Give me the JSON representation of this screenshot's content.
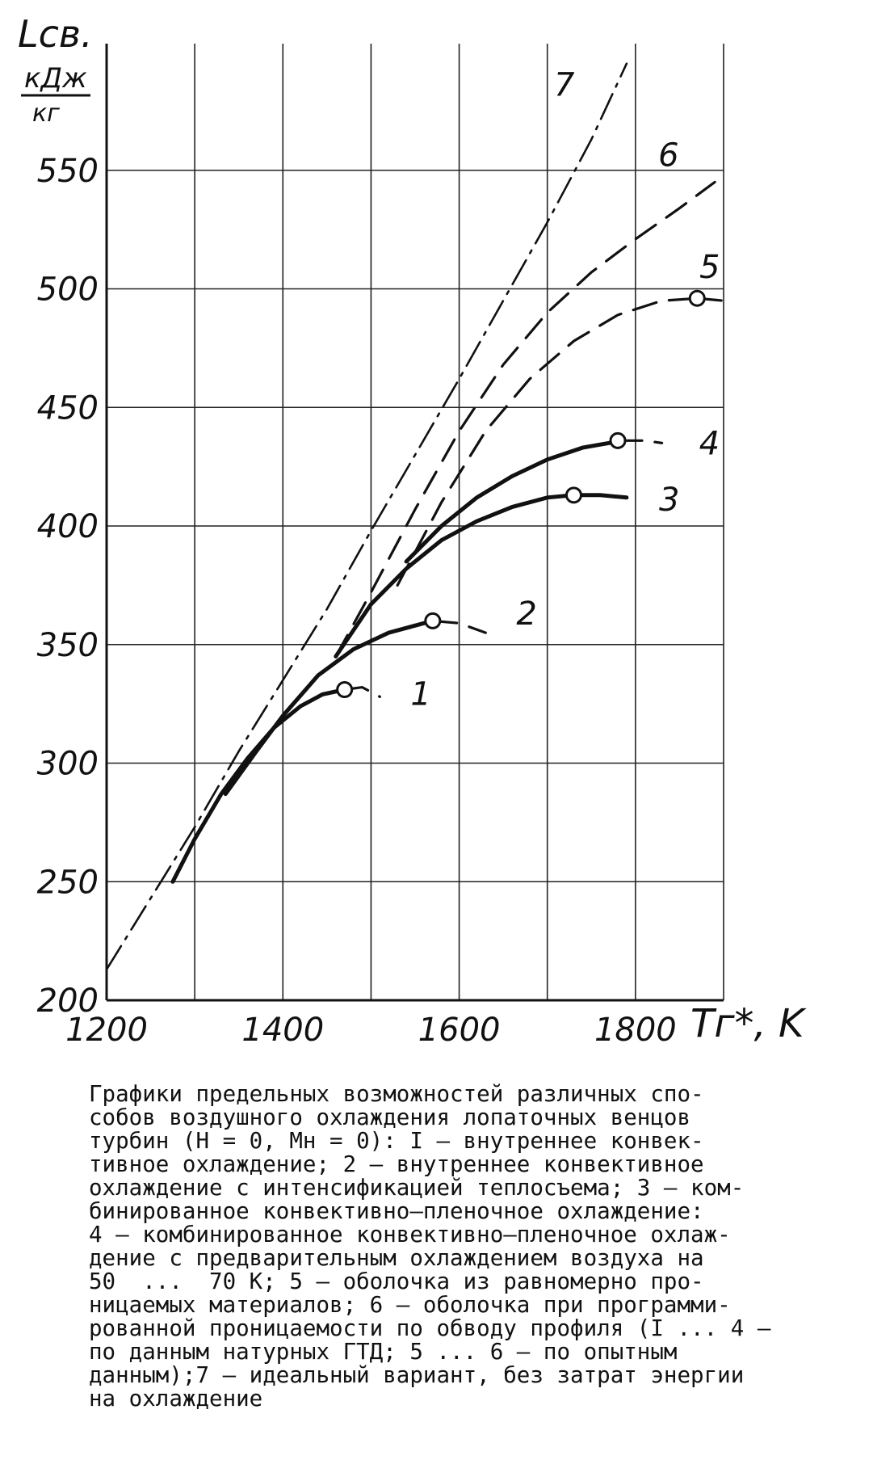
{
  "chart_data": {
    "type": "line",
    "ylabel_symbol": "Lсв.",
    "ylabel_unit_num": "кДж",
    "ylabel_unit_den": "кг",
    "xlabel": "Tг*, K",
    "xlim": [
      1200,
      1900
    ],
    "ylim": [
      200,
      600
    ],
    "xticks": [
      1200,
      1400,
      1600,
      1800
    ],
    "yticks": [
      200,
      250,
      300,
      350,
      400,
      450,
      500,
      550
    ],
    "grid": true,
    "series": [
      {
        "name": "1",
        "style": "solid-bold",
        "x": [
          1275,
          1300,
          1330,
          1360,
          1390,
          1420,
          1445,
          1470
        ],
        "y": [
          250,
          268,
          287,
          302,
          315,
          324,
          329,
          331
        ]
      },
      {
        "name": "1",
        "style": "dash",
        "x": [
          1470,
          1490,
          1510
        ],
        "y": [
          331,
          332,
          328
        ]
      },
      {
        "name": "2",
        "style": "solid-bold",
        "x": [
          1335,
          1370,
          1400,
          1440,
          1480,
          1520,
          1560,
          1570
        ],
        "y": [
          287,
          305,
          320,
          337,
          348,
          355,
          359,
          360
        ]
      },
      {
        "name": "2",
        "style": "dash",
        "x": [
          1570,
          1600,
          1630
        ],
        "y": [
          360,
          359,
          355
        ]
      },
      {
        "name": "3",
        "style": "solid-bold",
        "x": [
          1460,
          1500,
          1540,
          1580,
          1620,
          1660,
          1700,
          1730
        ],
        "y": [
          345,
          367,
          382,
          394,
          402,
          408,
          412,
          413
        ]
      },
      {
        "name": "3",
        "style": "solid-bold",
        "x": [
          1730,
          1760,
          1790
        ],
        "y": [
          413,
          413,
          412
        ]
      },
      {
        "name": "4",
        "style": "solid-bold",
        "x": [
          1540,
          1580,
          1620,
          1660,
          1700,
          1740,
          1770,
          1780
        ],
        "y": [
          385,
          400,
          412,
          421,
          428,
          433,
          435,
          436
        ]
      },
      {
        "name": "4",
        "style": "dash",
        "x": [
          1780,
          1810,
          1830
        ],
        "y": [
          436,
          436,
          435
        ]
      },
      {
        "name": "5",
        "style": "dash",
        "x": [
          1530,
          1580,
          1630,
          1680,
          1730,
          1780,
          1830,
          1870
        ],
        "y": [
          375,
          410,
          440,
          462,
          478,
          489,
          495,
          496
        ]
      },
      {
        "name": "5",
        "style": "dash",
        "x": [
          1870,
          1900
        ],
        "y": [
          496,
          495
        ]
      },
      {
        "name": "6",
        "style": "dash",
        "x": [
          1460,
          1500,
          1550,
          1600,
          1650,
          1700,
          1750,
          1800,
          1850,
          1890
        ],
        "y": [
          345,
          372,
          407,
          440,
          468,
          490,
          507,
          521,
          534,
          545
        ]
      },
      {
        "name": "7",
        "style": "dash-dot",
        "x": [
          1200,
          1300,
          1350,
          1400,
          1450,
          1500,
          1550,
          1600,
          1650,
          1700,
          1750,
          1790
        ],
        "y": [
          213,
          273,
          305,
          335,
          365,
          398,
          430,
          462,
          495,
          528,
          563,
          595
        ]
      }
    ],
    "markers": [
      {
        "series": "1",
        "x": 1470,
        "y": 331
      },
      {
        "series": "2",
        "x": 1570,
        "y": 360
      },
      {
        "series": "3",
        "x": 1730,
        "y": 413
      },
      {
        "series": "4",
        "x": 1780,
        "y": 436
      },
      {
        "series": "5",
        "x": 1870,
        "y": 496
      }
    ]
  },
  "caption": "Графики предельных возможностей различных спо-\nсобов воздушного охлаждения лопаточных венцов\nтурбин (H = 0, Mн = 0): I – внутреннее конвек-\nтивное охлаждение; 2 – внутреннее конвективное\nохлаждение с интенсификацией теплосъема; 3 – ком-\nбинированное конвективно–пленочное охлаждение:\n4 – комбинированное конвективно–пленочное охлаж-\nдение с предварительным охлаждением воздуха на\n50  ...  70 К; 5 – оболочка из равномерно про-\nницаемых материалов; 6 – оболочка при программи-\nрованной проницаемости по обводу профиля (I ... 4 –\nпо данным натурных ГТД; 5 ... 6 – по опытным\nданным);7 – идеальный вариант, без затрат энергии\nна охлаждение"
}
